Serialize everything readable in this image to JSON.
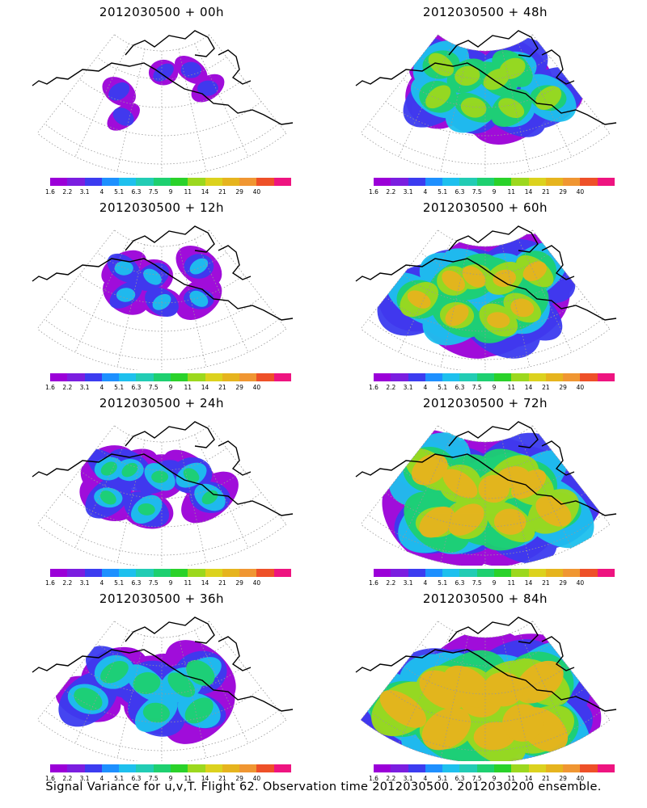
{
  "panels": [
    {
      "title": "2012030500 + 00h",
      "intensity": 0.15
    },
    {
      "title": "2012030500 + 48h",
      "intensity": 0.55
    },
    {
      "title": "2012030500 + 12h",
      "intensity": 0.25
    },
    {
      "title": "2012030500 + 60h",
      "intensity": 0.65
    },
    {
      "title": "2012030500 + 24h",
      "intensity": 0.35
    },
    {
      "title": "2012030500 + 72h",
      "intensity": 0.75
    },
    {
      "title": "2012030500 + 36h",
      "intensity": 0.45
    },
    {
      "title": "2012030500 + 84h",
      "intensity": 0.85
    }
  ],
  "colorbar": {
    "labels": [
      "1.6",
      "2.2",
      "3.1",
      "4",
      "5.1",
      "6.3",
      "7.5",
      "9",
      "11",
      "14",
      "21",
      "29",
      "40"
    ],
    "colors": [
      "#9b00d8",
      "#7b1ee0",
      "#3c3cf0",
      "#1e90ff",
      "#1ec0ee",
      "#22ccb4",
      "#1ed070",
      "#2ad22a",
      "#9cd81e",
      "#dcd21e",
      "#e6b41e",
      "#f09632",
      "#ee5028",
      "#ee1480"
    ]
  },
  "footer": "Signal Variance for u,v,T. Flight 62. Observation time 2012030500. 2012030200 ensemble.",
  "colors": {
    "background": "#ffffff",
    "coast": "#000000",
    "grid": "#999999"
  }
}
